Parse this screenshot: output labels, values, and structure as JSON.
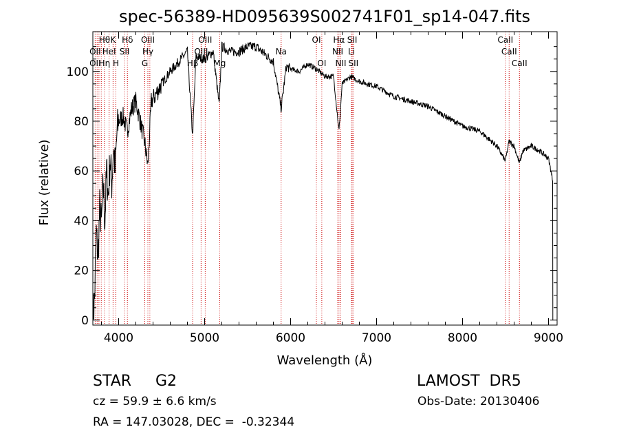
{
  "chart_data": {
    "type": "line",
    "title": "spec-56389-HD095639S002741F01_sp14-047.fits",
    "xlabel": "Wavelength (Å)",
    "ylabel": "Flux (relative)",
    "xlim": [
      3700,
      9100
    ],
    "ylim": [
      -2,
      116
    ],
    "x_ticks": [
      4000,
      5000,
      6000,
      7000,
      8000,
      9000
    ],
    "y_ticks": [
      0,
      20,
      40,
      60,
      80,
      100
    ],
    "grid": false,
    "legend": "none",
    "series": [
      {
        "x": [
          3700,
          3720,
          3740,
          3760,
          3780,
          3800,
          3820,
          3840,
          3860,
          3880,
          3900,
          3920,
          3940,
          3960,
          3980,
          4000,
          4050,
          4100,
          4150,
          4200,
          4250,
          4300,
          4340,
          4380,
          4420,
          4500,
          4600,
          4700,
          4800,
          4860,
          4900,
          5000,
          5100,
          5170,
          5200,
          5300,
          5400,
          5500,
          5600,
          5700,
          5800,
          5890,
          5950,
          6000,
          6100,
          6200,
          6300,
          6400,
          6500,
          6563,
          6600,
          6700,
          6800,
          7000,
          7200,
          7400,
          7600,
          7800,
          8000,
          8200,
          8400,
          8498,
          8542,
          8600,
          8662,
          8700,
          8800,
          8900,
          9000,
          9050
        ],
        "y": [
          2,
          8,
          35,
          25,
          45,
          38,
          55,
          40,
          60,
          50,
          65,
          55,
          70,
          60,
          75,
          80,
          82,
          76,
          85,
          88,
          80,
          72,
          62,
          88,
          90,
          95,
          100,
          104,
          108,
          74,
          106,
          105,
          108,
          86,
          110,
          108,
          108,
          110,
          110,
          107,
          104,
          85,
          102,
          101,
          100,
          103,
          101,
          98,
          98,
          76,
          95,
          98,
          96,
          94,
          90,
          88,
          86,
          82,
          78,
          76,
          70,
          64,
          72,
          70,
          63,
          68,
          70,
          68,
          65,
          56
        ]
      }
    ],
    "line_labels": [
      {
        "x": 3835,
        "label": "Hθ",
        "row": 0
      },
      {
        "x": 3935,
        "label": "K",
        "row": 0
      },
      {
        "x": 4102,
        "label": "Hδ",
        "row": 0
      },
      {
        "x": 4340,
        "label": "OIII",
        "row": 0
      },
      {
        "x": 5007,
        "label": "OIII",
        "row": 0
      },
      {
        "x": 6300,
        "label": "OI",
        "row": 0
      },
      {
        "x": 6563,
        "label": "Hα",
        "row": 0
      },
      {
        "x": 6717,
        "label": "SII",
        "row": 0
      },
      {
        "x": 8498,
        "label": "CaII",
        "row": 0
      },
      {
        "x": 3727,
        "label": "OII",
        "row": 1
      },
      {
        "x": 3889,
        "label": "HeI",
        "row": 1
      },
      {
        "x": 4069,
        "label": "SII",
        "row": 1
      },
      {
        "x": 4959,
        "label": "OIII",
        "row": 1
      },
      {
        "x": 6548,
        "label": "NII",
        "row": 1
      },
      {
        "x": 6708,
        "label": "Li",
        "row": 1
      },
      {
        "x": 8542,
        "label": "CaII",
        "row": 1
      },
      {
        "x": 5890,
        "label": "Na",
        "row": 1
      },
      {
        "x": 3727,
        "label": "OII",
        "row": 2
      },
      {
        "x": 3835,
        "label": "Hη",
        "row": 2
      },
      {
        "x": 3968,
        "label": "H",
        "row": 2
      },
      {
        "x": 4340,
        "label": "Hγ",
        "row": 1
      },
      {
        "x": 4304,
        "label": "G",
        "row": 2
      },
      {
        "x": 4861,
        "label": "Hβ",
        "row": 2
      },
      {
        "x": 5175,
        "label": "Mg",
        "row": 2
      },
      {
        "x": 6363,
        "label": "OI",
        "row": 2
      },
      {
        "x": 6584,
        "label": "NII",
        "row": 2
      },
      {
        "x": 6731,
        "label": "SII",
        "row": 2
      },
      {
        "x": 8662,
        "label": "CaII",
        "row": 2
      }
    ],
    "line_marks": [
      3727,
      3750,
      3771,
      3798,
      3835,
      3889,
      3935,
      3968,
      4069,
      4102,
      4304,
      4340,
      4363,
      4861,
      4959,
      5007,
      5175,
      5890,
      6300,
      6363,
      6548,
      6563,
      6584,
      6708,
      6717,
      6731,
      8498,
      8542,
      8662
    ],
    "colors": {
      "spectrum": "#000000",
      "line_marks": "#cc0000",
      "axes": "#000000"
    }
  },
  "footer": {
    "object": "STAR     G2",
    "survey": "LAMOST  DR5",
    "cz": "cz = 59.9 ± 6.6 km/s",
    "obs_date": "Obs-Date: 20130406",
    "coords": "RA = 147.03028, DEC =  -0.32344"
  }
}
